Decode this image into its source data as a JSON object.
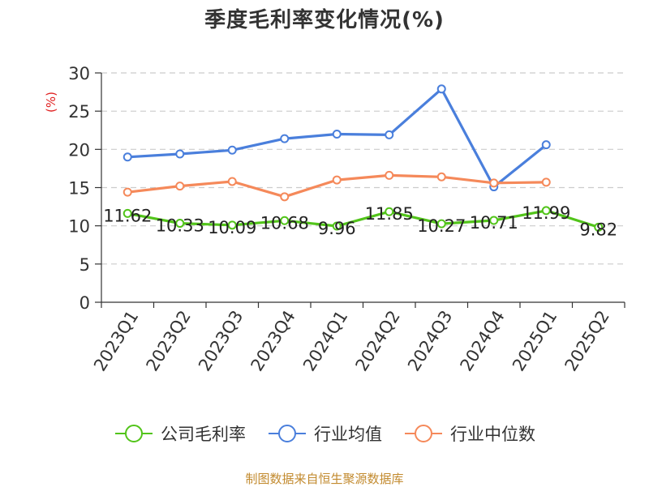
{
  "chart_data": {
    "type": "line",
    "title": "季度毛利率变化情况(%)",
    "ylabel": "(%)",
    "xlabel": "",
    "ylim": [
      0,
      30
    ],
    "yticks": [
      0,
      5,
      10,
      15,
      20,
      25,
      30
    ],
    "grid": true,
    "legend_position": "bottom",
    "categories": [
      "2023Q1",
      "2023Q2",
      "2023Q3",
      "2023Q4",
      "2024Q1",
      "2024Q2",
      "2024Q3",
      "2024Q4",
      "2025Q1",
      "2025Q2"
    ],
    "series": [
      {
        "name": "公司毛利率",
        "color": "#52c41a",
        "values": [
          11.62,
          10.33,
          10.09,
          10.68,
          9.96,
          11.85,
          10.27,
          10.71,
          11.99,
          9.82
        ],
        "labels": true
      },
      {
        "name": "行业均值",
        "color": "#4a7fdc",
        "values": [
          19.0,
          19.4,
          19.9,
          21.4,
          22.0,
          21.9,
          27.9,
          15.1,
          20.6,
          null
        ],
        "labels": false
      },
      {
        "name": "行业中位数",
        "color": "#f5895a",
        "values": [
          14.4,
          15.2,
          15.8,
          13.8,
          16.0,
          16.6,
          16.4,
          15.6,
          15.7,
          null
        ],
        "labels": false
      }
    ]
  },
  "ylabel_color": "#e02020",
  "footer": {
    "source": "制图数据来自恒生聚源数据库"
  }
}
